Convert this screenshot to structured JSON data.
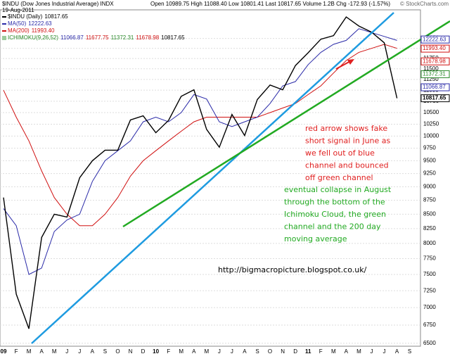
{
  "chart_data": {
    "type": "line",
    "title": "$INDU (Dow Jones Industrial Average) INDX",
    "date": "19-Aug-2011",
    "stats": "Open 10989.75 High 11088.40 Low 10801.41 Last 10817.65 Volume 1.2B Chg -172.93 (-1.57%)",
    "watermark": "© StockCharts.com",
    "categories": [
      "09",
      "F",
      "M",
      "A",
      "M",
      "J",
      "J",
      "A",
      "S",
      "O",
      "N",
      "D",
      "10",
      "F",
      "M",
      "A",
      "M",
      "J",
      "J",
      "A",
      "S",
      "O",
      "N",
      "D",
      "11",
      "F",
      "M",
      "A",
      "M",
      "J",
      "J",
      "A",
      "S"
    ],
    "series": [
      {
        "name": "$INDU (Daily)",
        "last": "10817.65",
        "color": "#000000",
        "values": [
          8800,
          7200,
          6700,
          8100,
          8500,
          8450,
          9170,
          9500,
          9710,
          9710,
          10340,
          10430,
          10070,
          10330,
          10860,
          11010,
          10140,
          9770,
          10460,
          10010,
          10790,
          11120,
          11010,
          11580,
          11890,
          12230,
          12320,
          12810,
          12570,
          12410,
          12140,
          10818,
          null
        ]
      },
      {
        "name": "MA(50)",
        "last": "12222.63",
        "color": "#2a2aa8",
        "values": [
          8600,
          8300,
          7500,
          7600,
          8200,
          8400,
          8500,
          9100,
          9500,
          9700,
          9900,
          10300,
          10400,
          10300,
          10500,
          10900,
          10800,
          10300,
          10200,
          10300,
          10400,
          10700,
          11100,
          11200,
          11600,
          11900,
          12100,
          12200,
          12500,
          12400,
          12300,
          12200,
          null
        ]
      },
      {
        "name": "MA(200)",
        "last": "11993.40",
        "color": "#d01010",
        "values": [
          11000,
          10400,
          9900,
          9300,
          8800,
          8500,
          8300,
          8300,
          8500,
          8800,
          9200,
          9500,
          9700,
          9900,
          10100,
          10300,
          10400,
          10400,
          10400,
          10400,
          10400,
          10500,
          10600,
          10700,
          10900,
          11100,
          11400,
          11700,
          11900,
          12000,
          12100,
          12000,
          null
        ]
      }
    ],
    "ichimoku": {
      "name": "ICHIMOKU(9,26,52)",
      "color": "#2a8a2a",
      "values": [
        "11066.87",
        "11677.75",
        "11372.31",
        "11678.98",
        "10817.65"
      ]
    },
    "ylim": [
      6460,
      13000
    ],
    "log_scale": true,
    "yticks": [
      6500,
      6750,
      7000,
      7250,
      7500,
      7750,
      8000,
      8250,
      8500,
      8750,
      9000,
      9250,
      9500,
      9750,
      10000,
      10250,
      10500,
      10750,
      11000,
      11250,
      11500,
      11750,
      12000,
      12250
    ],
    "grid": true,
    "annotations": {
      "red": [
        "red arrow shows fake",
        "short signal in June as",
        "we fell out of blue",
        "channel and bounced",
        "off green channel"
      ],
      "green": [
        "eventual collapse in August",
        "through the bottom of the",
        "Ichimoku Cloud, the green",
        "channel and the 200 day",
        "moving average"
      ],
      "url": "http://bigmacropicture.blogspot.co.uk/"
    }
  }
}
